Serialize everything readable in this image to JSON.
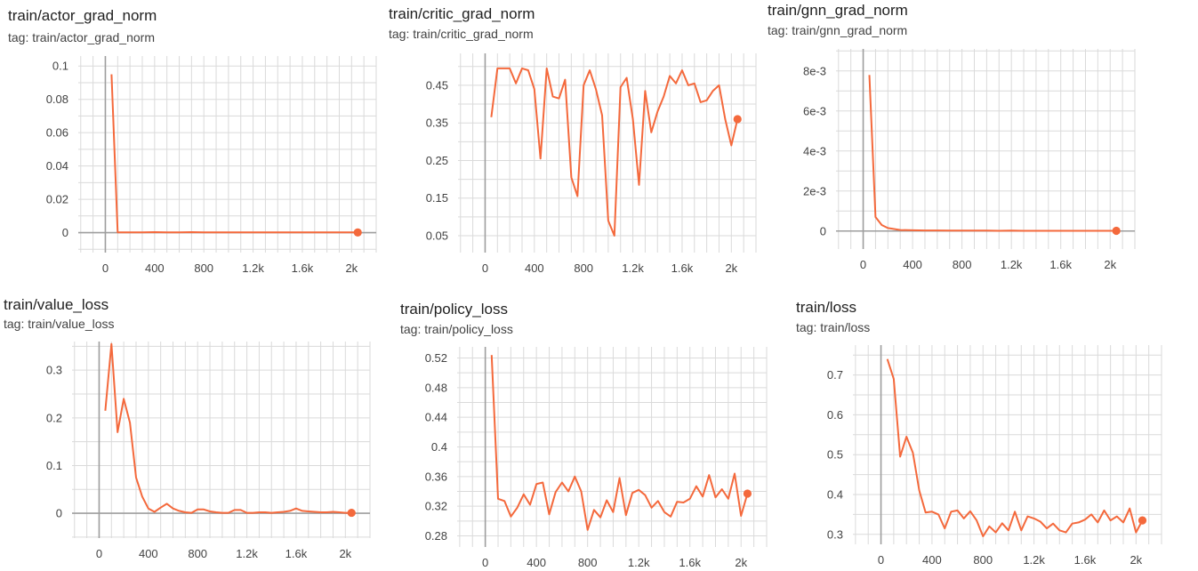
{
  "colors": {
    "series": "#f4693c",
    "grid": "#dadada",
    "axis": "#9e9e9e",
    "background": "#ffffff"
  },
  "chart_data": [
    {
      "title": "train/actor_grad_norm",
      "tag": "tag: train/actor_grad_norm",
      "type": "line",
      "xlim": [
        -220,
        2200
      ],
      "ylim": [
        -0.012,
        0.106
      ],
      "x_ticks": [
        {
          "v": 0,
          "label": "0"
        },
        {
          "v": 400,
          "label": "400"
        },
        {
          "v": 800,
          "label": "800"
        },
        {
          "v": 1200,
          "label": "1.2k"
        },
        {
          "v": 1600,
          "label": "1.6k"
        },
        {
          "v": 2000,
          "label": "2k"
        }
      ],
      "y_ticks": [
        {
          "v": 0,
          "label": "0"
        },
        {
          "v": 0.02,
          "label": "0.02"
        },
        {
          "v": 0.04,
          "label": "0.04"
        },
        {
          "v": 0.06,
          "label": "0.06"
        },
        {
          "v": 0.08,
          "label": "0.08"
        },
        {
          "v": 0.1,
          "label": "0.1"
        }
      ],
      "grid": true,
      "x": [
        50,
        100,
        200,
        300,
        400,
        500,
        600,
        700,
        800,
        900,
        1000,
        1100,
        1200,
        1300,
        1400,
        1500,
        1600,
        1700,
        1800,
        1900,
        2000,
        2050
      ],
      "y": [
        0.095,
        0.0002,
        0.0001,
        0.0001,
        0.0003,
        0.0001,
        0.0002,
        0.0003,
        0.0001,
        0.0001,
        0.0002,
        0.0001,
        0.0002,
        0.0001,
        0.0001,
        0.0002,
        0.0001,
        0.0001,
        0.0001,
        0.0001,
        0.0002,
        0.0001
      ]
    },
    {
      "title": "train/critic_grad_norm",
      "tag": "tag: train/critic_grad_norm",
      "type": "line",
      "xlim": [
        -220,
        2200
      ],
      "ylim": [
        0.005,
        0.535
      ],
      "x_ticks": [
        {
          "v": 0,
          "label": "0"
        },
        {
          "v": 400,
          "label": "400"
        },
        {
          "v": 800,
          "label": "800"
        },
        {
          "v": 1200,
          "label": "1.2k"
        },
        {
          "v": 1600,
          "label": "1.6k"
        },
        {
          "v": 2000,
          "label": "2k"
        }
      ],
      "y_ticks": [
        {
          "v": 0.05,
          "label": "0.05"
        },
        {
          "v": 0.15,
          "label": "0.15"
        },
        {
          "v": 0.25,
          "label": "0.25"
        },
        {
          "v": 0.35,
          "label": "0.35"
        },
        {
          "v": 0.45,
          "label": "0.45"
        }
      ],
      "grid": true,
      "x": [
        50,
        100,
        150,
        200,
        250,
        300,
        350,
        400,
        450,
        500,
        550,
        600,
        650,
        700,
        750,
        800,
        850,
        900,
        950,
        1000,
        1050,
        1100,
        1150,
        1200,
        1250,
        1300,
        1350,
        1400,
        1450,
        1500,
        1550,
        1600,
        1650,
        1700,
        1750,
        1800,
        1850,
        1900,
        1950,
        2000,
        2050
      ],
      "y": [
        0.365,
        0.495,
        0.495,
        0.495,
        0.455,
        0.495,
        0.49,
        0.44,
        0.255,
        0.495,
        0.42,
        0.415,
        0.465,
        0.205,
        0.155,
        0.45,
        0.49,
        0.44,
        0.37,
        0.09,
        0.05,
        0.445,
        0.47,
        0.36,
        0.185,
        0.435,
        0.325,
        0.38,
        0.42,
        0.475,
        0.455,
        0.49,
        0.45,
        0.455,
        0.405,
        0.41,
        0.435,
        0.45,
        0.36,
        0.29,
        0.36
      ]
    },
    {
      "title": "train/gnn_grad_norm",
      "tag": "tag: train/gnn_grad_norm",
      "type": "line",
      "xlim": [
        -220,
        2200
      ],
      "ylim": [
        -0.0009,
        0.0091
      ],
      "x_ticks": [
        {
          "v": 0,
          "label": "0"
        },
        {
          "v": 400,
          "label": "400"
        },
        {
          "v": 800,
          "label": "800"
        },
        {
          "v": 1200,
          "label": "1.2k"
        },
        {
          "v": 1600,
          "label": "1.6k"
        },
        {
          "v": 2000,
          "label": "2k"
        }
      ],
      "y_ticks": [
        {
          "v": 0,
          "label": "0"
        },
        {
          "v": 0.002,
          "label": "2e-3"
        },
        {
          "v": 0.004,
          "label": "4e-3"
        },
        {
          "v": 0.006,
          "label": "6e-3"
        },
        {
          "v": 0.008,
          "label": "8e-3"
        }
      ],
      "grid": true,
      "x": [
        50,
        100,
        150,
        200,
        250,
        300,
        400,
        500,
        600,
        700,
        800,
        900,
        1000,
        1100,
        1200,
        1300,
        1400,
        1500,
        1600,
        1700,
        1800,
        1900,
        2000,
        2050
      ],
      "y": [
        0.0078,
        0.0007,
        0.0003,
        0.00015,
        0.0001,
        5e-05,
        4e-05,
        3e-05,
        3e-05,
        2e-05,
        2e-05,
        2e-05,
        2e-05,
        1e-05,
        2e-05,
        1e-05,
        1e-05,
        1e-05,
        1e-05,
        1e-05,
        1e-05,
        1e-05,
        1e-05,
        1e-05
      ]
    },
    {
      "title": "train/value_loss",
      "tag": "tag: train/value_loss",
      "type": "line",
      "xlim": [
        -220,
        2200
      ],
      "ylim": [
        -0.052,
        0.36
      ],
      "x_ticks": [
        {
          "v": 0,
          "label": "0"
        },
        {
          "v": 400,
          "label": "400"
        },
        {
          "v": 800,
          "label": "800"
        },
        {
          "v": 1200,
          "label": "1.2k"
        },
        {
          "v": 1600,
          "label": "1.6k"
        },
        {
          "v": 2000,
          "label": "2k"
        }
      ],
      "y_ticks": [
        {
          "v": 0,
          "label": "0"
        },
        {
          "v": 0.1,
          "label": "0.1"
        },
        {
          "v": 0.2,
          "label": "0.2"
        },
        {
          "v": 0.3,
          "label": "0.3"
        }
      ],
      "grid": true,
      "x": [
        50,
        100,
        150,
        200,
        250,
        300,
        350,
        400,
        450,
        500,
        550,
        600,
        650,
        700,
        750,
        800,
        850,
        900,
        950,
        1000,
        1050,
        1100,
        1150,
        1200,
        1250,
        1300,
        1350,
        1400,
        1450,
        1500,
        1550,
        1600,
        1650,
        1700,
        1750,
        1800,
        1850,
        1900,
        1950,
        2000,
        2050
      ],
      "y": [
        0.215,
        0.355,
        0.17,
        0.24,
        0.19,
        0.075,
        0.035,
        0.01,
        0.003,
        0.012,
        0.02,
        0.01,
        0.005,
        0.002,
        0.001,
        0.008,
        0.008,
        0.004,
        0.002,
        0.001,
        0.001,
        0.007,
        0.007,
        0.001,
        0.001,
        0.002,
        0.002,
        0.001,
        0.002,
        0.003,
        0.005,
        0.01,
        0.005,
        0.004,
        0.003,
        0.002,
        0.002,
        0.003,
        0.002,
        0.001,
        0.001
      ]
    },
    {
      "title": "train/policy_loss",
      "tag": "tag: train/policy_loss",
      "type": "line",
      "xlim": [
        -220,
        2200
      ],
      "ylim": [
        0.265,
        0.535
      ],
      "x_ticks": [
        {
          "v": 0,
          "label": "0"
        },
        {
          "v": 400,
          "label": "400"
        },
        {
          "v": 800,
          "label": "800"
        },
        {
          "v": 1200,
          "label": "1.2k"
        },
        {
          "v": 1600,
          "label": "1.6k"
        },
        {
          "v": 2000,
          "label": "2k"
        }
      ],
      "y_ticks": [
        {
          "v": 0.28,
          "label": "0.28"
        },
        {
          "v": 0.32,
          "label": "0.32"
        },
        {
          "v": 0.36,
          "label": "0.36"
        },
        {
          "v": 0.4,
          "label": "0.4"
        },
        {
          "v": 0.44,
          "label": "0.44"
        },
        {
          "v": 0.48,
          "label": "0.48"
        },
        {
          "v": 0.52,
          "label": "0.52"
        }
      ],
      "grid": true,
      "x": [
        50,
        100,
        150,
        200,
        250,
        300,
        350,
        400,
        450,
        500,
        550,
        600,
        650,
        700,
        750,
        800,
        850,
        900,
        950,
        1000,
        1050,
        1100,
        1150,
        1200,
        1250,
        1300,
        1350,
        1400,
        1450,
        1500,
        1550,
        1600,
        1650,
        1700,
        1750,
        1800,
        1850,
        1900,
        1950,
        2000,
        2050
      ],
      "y": [
        0.524,
        0.33,
        0.327,
        0.306,
        0.318,
        0.336,
        0.322,
        0.35,
        0.352,
        0.309,
        0.339,
        0.352,
        0.34,
        0.36,
        0.34,
        0.288,
        0.315,
        0.305,
        0.328,
        0.312,
        0.358,
        0.308,
        0.338,
        0.342,
        0.335,
        0.318,
        0.327,
        0.312,
        0.306,
        0.326,
        0.325,
        0.33,
        0.347,
        0.333,
        0.362,
        0.332,
        0.343,
        0.33,
        0.364,
        0.307,
        0.337
      ]
    },
    {
      "title": "train/loss",
      "tag": "tag: train/loss",
      "type": "line",
      "xlim": [
        -220,
        2200
      ],
      "ylim": [
        0.275,
        0.775
      ],
      "x_ticks": [
        {
          "v": 0,
          "label": "0"
        },
        {
          "v": 400,
          "label": "400"
        },
        {
          "v": 800,
          "label": "800"
        },
        {
          "v": 1200,
          "label": "1.2k"
        },
        {
          "v": 1600,
          "label": "1.6k"
        },
        {
          "v": 2000,
          "label": "2k"
        }
      ],
      "y_ticks": [
        {
          "v": 0.3,
          "label": "0.3"
        },
        {
          "v": 0.4,
          "label": "0.4"
        },
        {
          "v": 0.5,
          "label": "0.5"
        },
        {
          "v": 0.6,
          "label": "0.6"
        },
        {
          "v": 0.7,
          "label": "0.7"
        }
      ],
      "grid": true,
      "x": [
        50,
        100,
        150,
        200,
        250,
        300,
        350,
        400,
        450,
        500,
        550,
        600,
        650,
        700,
        750,
        800,
        850,
        900,
        950,
        1000,
        1050,
        1100,
        1150,
        1200,
        1250,
        1300,
        1350,
        1400,
        1450,
        1500,
        1550,
        1600,
        1650,
        1700,
        1750,
        1800,
        1850,
        1900,
        1950,
        2000,
        2050
      ],
      "y": [
        0.74,
        0.69,
        0.495,
        0.545,
        0.505,
        0.41,
        0.355,
        0.357,
        0.35,
        0.315,
        0.357,
        0.36,
        0.34,
        0.358,
        0.335,
        0.295,
        0.32,
        0.305,
        0.328,
        0.31,
        0.357,
        0.31,
        0.345,
        0.34,
        0.332,
        0.315,
        0.327,
        0.31,
        0.305,
        0.327,
        0.33,
        0.337,
        0.35,
        0.33,
        0.36,
        0.335,
        0.345,
        0.33,
        0.365,
        0.305,
        0.335
      ]
    }
  ]
}
